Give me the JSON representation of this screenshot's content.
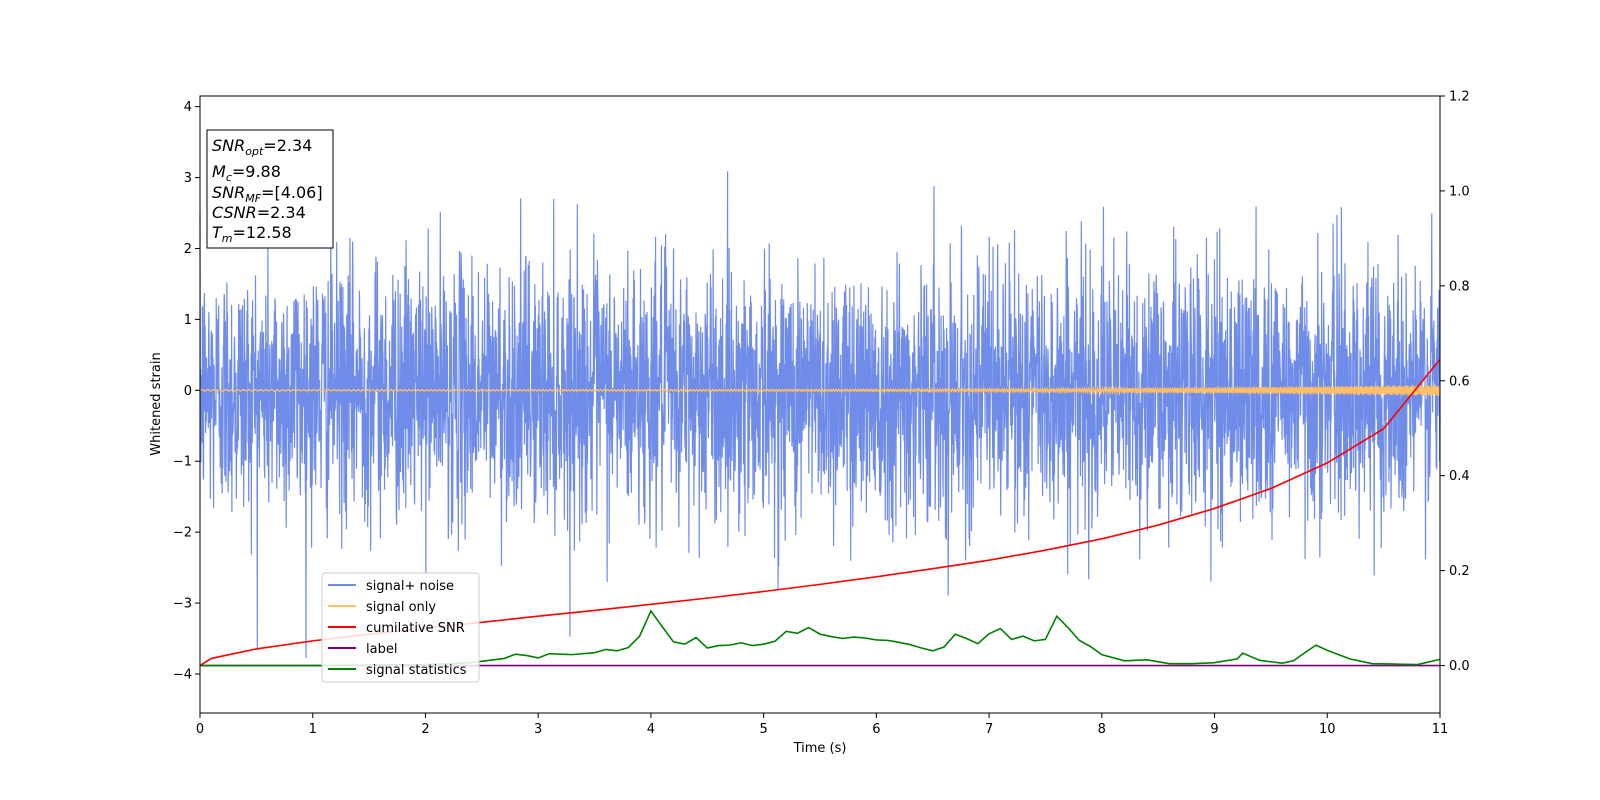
{
  "chart_data": {
    "type": "line",
    "xlabel": "Time (s)",
    "ylabel": "Whitened strain",
    "xlim": [
      0,
      11
    ],
    "ylim": [
      -4.55,
      4.15
    ],
    "y2lim": [
      -0.1,
      1.2
    ],
    "xticks": [
      "0",
      "1",
      "2",
      "3",
      "4",
      "5",
      "6",
      "7",
      "8",
      "9",
      "10",
      "11"
    ],
    "yticks": [
      "−4",
      "−3",
      "−2",
      "−1",
      "0",
      "1",
      "2",
      "3",
      "4"
    ],
    "y2ticks": [
      "0.0",
      "0.2",
      "0.4",
      "0.6",
      "0.8",
      "1.0",
      "1.2"
    ],
    "grid": false,
    "legend_position": "lower-left",
    "info_box": {
      "snr_opt": {
        "symbol": "SNR",
        "sub": "opt",
        "value": "=2.34"
      },
      "mc": {
        "symbol": "M",
        "sub": "c",
        "value": "=9.88"
      },
      "snr_mf": {
        "symbol": "SNR",
        "sub": "MF",
        "value": "=[4.06]"
      },
      "csnr": {
        "symbol": "CSNR",
        "sub": "",
        "value": "=2.34"
      },
      "tm": {
        "symbol": "T",
        "sub": "m",
        "value": "=12.58"
      }
    },
    "series": [
      {
        "name": "signal+ noise",
        "color": "#6f8ce8",
        "axis": "left",
        "description_noise_sigma": 0.9
      },
      {
        "name": "signal only",
        "color": "#ffbf66",
        "axis": "left",
        "amplitude_start": 0.01,
        "amplitude_end": 0.08
      },
      {
        "name": "cumilative SNR",
        "color": "#ff0000",
        "axis": "right",
        "x": [
          0,
          0.1,
          0.5,
          1,
          1.5,
          2,
          2.5,
          3,
          3.5,
          4,
          4.5,
          5,
          5.5,
          6,
          6.5,
          7,
          7.5,
          8,
          8.5,
          9,
          9.5,
          10,
          10.5,
          11
        ],
        "y": [
          0.0,
          0.015,
          0.035,
          0.052,
          0.066,
          0.079,
          0.091,
          0.104,
          0.116,
          0.129,
          0.142,
          0.156,
          0.171,
          0.187,
          0.204,
          0.222,
          0.243,
          0.267,
          0.296,
          0.331,
          0.373,
          0.427,
          0.499,
          0.645
        ]
      },
      {
        "name": "label",
        "color": "#800080",
        "axis": "right",
        "x": [
          0,
          11
        ],
        "y": [
          0,
          0
        ]
      },
      {
        "name": "signal statistics",
        "color": "#008000",
        "axis": "right",
        "x": [
          0,
          0.5,
          1.0,
          1.5,
          2.0,
          2.4,
          2.7,
          2.8,
          2.9,
          3.0,
          3.1,
          3.3,
          3.5,
          3.6,
          3.7,
          3.8,
          3.9,
          4.0,
          4.1,
          4.2,
          4.3,
          4.4,
          4.5,
          4.6,
          4.7,
          4.8,
          4.9,
          5.0,
          5.1,
          5.2,
          5.3,
          5.4,
          5.5,
          5.6,
          5.7,
          5.8,
          5.9,
          6.0,
          6.1,
          6.2,
          6.3,
          6.4,
          6.5,
          6.6,
          6.7,
          6.8,
          6.9,
          7.0,
          7.1,
          7.2,
          7.3,
          7.4,
          7.5,
          7.6,
          7.7,
          7.8,
          7.9,
          8.0,
          8.2,
          8.4,
          8.6,
          8.8,
          9.0,
          9.2,
          9.25,
          9.4,
          9.6,
          9.7,
          9.8,
          9.9,
          10.0,
          10.2,
          10.4,
          10.6,
          10.8,
          11.0
        ],
        "y": [
          0.0,
          0.0,
          0.0,
          0.001,
          0.002,
          0.006,
          0.015,
          0.024,
          0.021,
          0.016,
          0.025,
          0.023,
          0.027,
          0.034,
          0.031,
          0.038,
          0.062,
          0.115,
          0.082,
          0.05,
          0.045,
          0.059,
          0.037,
          0.042,
          0.043,
          0.048,
          0.042,
          0.045,
          0.051,
          0.072,
          0.068,
          0.08,
          0.066,
          0.061,
          0.057,
          0.06,
          0.058,
          0.054,
          0.053,
          0.049,
          0.044,
          0.037,
          0.031,
          0.039,
          0.066,
          0.057,
          0.046,
          0.067,
          0.078,
          0.055,
          0.062,
          0.052,
          0.055,
          0.104,
          0.08,
          0.053,
          0.04,
          0.023,
          0.01,
          0.012,
          0.004,
          0.004,
          0.006,
          0.014,
          0.026,
          0.011,
          0.005,
          0.01,
          0.027,
          0.043,
          0.032,
          0.014,
          0.004,
          0.003,
          0.002,
          0.013
        ]
      }
    ]
  }
}
